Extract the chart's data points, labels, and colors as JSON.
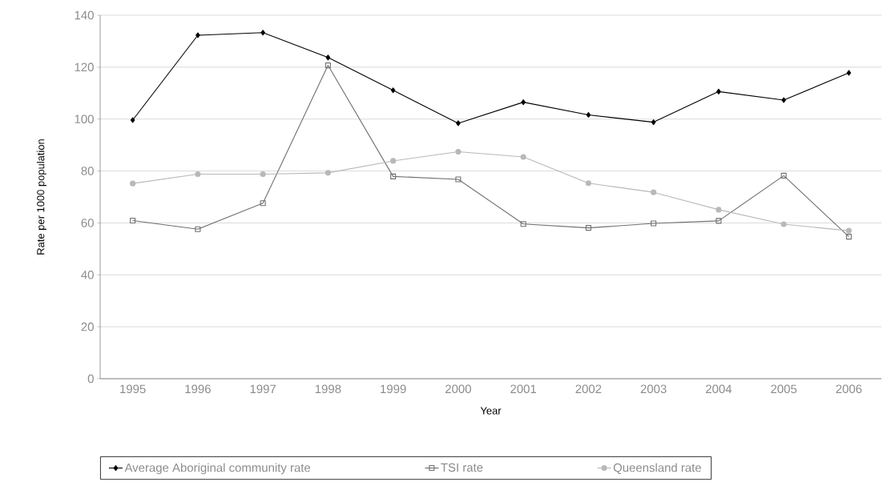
{
  "chart_data": {
    "type": "line",
    "xlabel": "Year",
    "ylabel": "Rate per 1000 population",
    "categories": [
      "1995",
      "1996",
      "1997",
      "1998",
      "1999",
      "2000",
      "2001",
      "2002",
      "2003",
      "2004",
      "2005",
      "2006"
    ],
    "series": [
      {
        "name": "Average Aboriginal community rate",
        "color": "#000000",
        "marker": "diamond",
        "values": [
          99.6,
          132.3,
          133.3,
          123.7,
          111.1,
          98.4,
          106.5,
          101.6,
          98.8,
          110.6,
          107.3,
          117.8
        ]
      },
      {
        "name": "TSI rate",
        "color": "#707070",
        "marker": "square",
        "values": [
          60.9,
          57.6,
          67.6,
          120.7,
          77.9,
          76.8,
          59.6,
          58.1,
          59.8,
          60.8,
          78.2,
          54.7
        ]
      },
      {
        "name": "Queensland rate",
        "color": "#b8b8b8",
        "marker": "circle",
        "values": [
          75.2,
          78.8,
          78.8,
          79.3,
          83.9,
          87.4,
          85.4,
          75.3,
          71.8,
          65.1,
          59.5,
          57.0
        ]
      }
    ],
    "ylim": [
      0,
      140
    ],
    "yticks": [
      0,
      20,
      40,
      60,
      80,
      100,
      120,
      140
    ],
    "grid": "y",
    "legend": "bottom",
    "line_style": "solid"
  }
}
